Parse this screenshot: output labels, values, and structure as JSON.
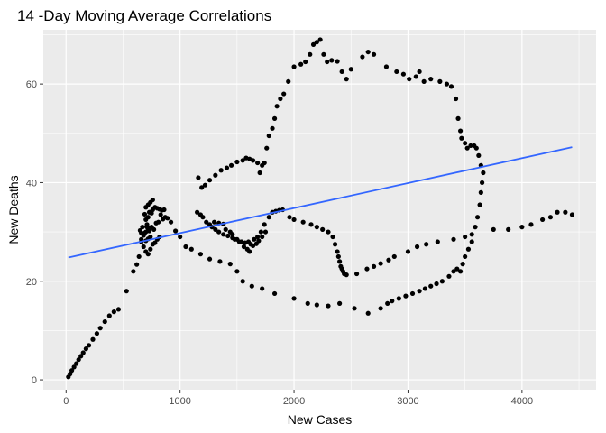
{
  "chart_data": {
    "type": "scatter",
    "title": "14 -Day Moving Average Correlations",
    "xlabel": "New  Cases",
    "ylabel": "New Deaths",
    "xlim": [
      -200,
      4650
    ],
    "ylim": [
      -2,
      71
    ],
    "x_ticks": [
      0,
      1000,
      2000,
      3000,
      4000
    ],
    "x_tick_labels": [
      "0",
      "1000",
      "2000",
      "3000",
      "4000"
    ],
    "y_ticks": [
      0,
      20,
      40,
      60
    ],
    "y_tick_labels": [
      "0",
      "20",
      "40",
      "60"
    ],
    "grid": true,
    "legend": "none",
    "colors": {
      "panel": "#ebebeb",
      "grid_major": "#ffffff",
      "points": "#000000",
      "fit_line": "#3366ff"
    },
    "fit_line": {
      "x": [
        20,
        4440
      ],
      "y": [
        24.8,
        47.2
      ]
    },
    "points": [
      [
        20,
        0.6
      ],
      [
        35,
        1.2
      ],
      [
        50,
        1.9
      ],
      [
        70,
        2.6
      ],
      [
        90,
        3.3
      ],
      [
        110,
        4.1
      ],
      [
        130,
        4.8
      ],
      [
        150,
        5.5
      ],
      [
        175,
        6.3
      ],
      [
        200,
        7.0
      ],
      [
        235,
        8.2
      ],
      [
        270,
        9.4
      ],
      [
        300,
        10.5
      ],
      [
        340,
        11.8
      ],
      [
        380,
        13.0
      ],
      [
        420,
        13.8
      ],
      [
        460,
        14.3
      ],
      [
        530,
        18.0
      ],
      [
        590,
        22.0
      ],
      [
        620,
        23.4
      ],
      [
        640,
        25.0
      ],
      [
        660,
        28.0
      ],
      [
        680,
        29.5
      ],
      [
        700,
        30.0
      ],
      [
        720,
        30.7
      ],
      [
        650,
        30.3
      ],
      [
        670,
        31.0
      ],
      [
        690,
        29.8
      ],
      [
        710,
        31.5
      ],
      [
        730,
        30.2
      ],
      [
        750,
        31.0
      ],
      [
        770,
        30.5
      ],
      [
        790,
        31.8
      ],
      [
        810,
        32.0
      ],
      [
        830,
        33.5
      ],
      [
        850,
        32.6
      ],
      [
        870,
        33.0
      ],
      [
        890,
        32.8
      ],
      [
        920,
        32.0
      ],
      [
        960,
        30.2
      ],
      [
        1000,
        29.0
      ],
      [
        700,
        32.5
      ],
      [
        720,
        33.0
      ],
      [
        740,
        34.0
      ],
      [
        760,
        34.5
      ],
      [
        780,
        35.0
      ],
      [
        800,
        34.8
      ],
      [
        820,
        34.6
      ],
      [
        840,
        34.4
      ],
      [
        860,
        34.5
      ],
      [
        700,
        35.0
      ],
      [
        720,
        35.5
      ],
      [
        740,
        36.0
      ],
      [
        760,
        36.5
      ],
      [
        730,
        34.0
      ],
      [
        750,
        33.8
      ],
      [
        690,
        33.6
      ],
      [
        710,
        31.0
      ],
      [
        740,
        29.0
      ],
      [
        660,
        28.5
      ],
      [
        680,
        27.0
      ],
      [
        700,
        26.0
      ],
      [
        720,
        25.5
      ],
      [
        740,
        26.5
      ],
      [
        760,
        27.5
      ],
      [
        780,
        27.8
      ],
      [
        800,
        28.5
      ],
      [
        820,
        29.0
      ],
      [
        680,
        29.3
      ],
      [
        660,
        29.8
      ],
      [
        700,
        28.2
      ],
      [
        720,
        28.6
      ],
      [
        1160,
        41.0
      ],
      [
        1190,
        39.0
      ],
      [
        1220,
        39.5
      ],
      [
        1260,
        40.5
      ],
      [
        1310,
        41.5
      ],
      [
        1360,
        42.5
      ],
      [
        1410,
        43.0
      ],
      [
        1450,
        43.5
      ],
      [
        1500,
        44.2
      ],
      [
        1550,
        44.5
      ],
      [
        1580,
        45.0
      ],
      [
        1610,
        44.8
      ],
      [
        1640,
        44.5
      ],
      [
        1680,
        44.0
      ],
      [
        1700,
        42.0
      ],
      [
        1720,
        43.5
      ],
      [
        1740,
        44.0
      ],
      [
        1760,
        47.0
      ],
      [
        1780,
        49.5
      ],
      [
        1810,
        51.0
      ],
      [
        1830,
        53.0
      ],
      [
        1850,
        55.5
      ],
      [
        1880,
        57.0
      ],
      [
        1910,
        58.0
      ],
      [
        1950,
        60.5
      ],
      [
        2000,
        63.5
      ],
      [
        2060,
        64.0
      ],
      [
        2100,
        64.5
      ],
      [
        2140,
        66.0
      ],
      [
        2170,
        68.0
      ],
      [
        2200,
        68.5
      ],
      [
        2230,
        69.0
      ],
      [
        2260,
        66.0
      ],
      [
        2290,
        64.5
      ],
      [
        2330,
        64.8
      ],
      [
        2380,
        64.6
      ],
      [
        2420,
        62.5
      ],
      [
        2460,
        61.0
      ],
      [
        2500,
        63.0
      ],
      [
        2600,
        65.5
      ],
      [
        2650,
        66.5
      ],
      [
        2700,
        66.0
      ],
      [
        2810,
        63.5
      ],
      [
        2900,
        62.5
      ],
      [
        2960,
        62.0
      ],
      [
        3010,
        61.0
      ],
      [
        3070,
        61.5
      ],
      [
        3100,
        62.5
      ],
      [
        3140,
        60.5
      ],
      [
        3200,
        61.0
      ],
      [
        3280,
        60.5
      ],
      [
        3340,
        60.0
      ],
      [
        3380,
        59.5
      ],
      [
        3420,
        57.0
      ],
      [
        3440,
        53.0
      ],
      [
        3460,
        50.5
      ],
      [
        3470,
        49.0
      ],
      [
        3500,
        48.0
      ],
      [
        3520,
        47.0
      ],
      [
        3550,
        47.5
      ],
      [
        3580,
        47.5
      ],
      [
        3600,
        47.0
      ],
      [
        3620,
        45.5
      ],
      [
        3640,
        43.5
      ],
      [
        3660,
        42.0
      ],
      [
        3650,
        40.0
      ],
      [
        3640,
        38.0
      ],
      [
        3630,
        35.5
      ],
      [
        3610,
        33.0
      ],
      [
        3590,
        31.0
      ],
      [
        3560,
        28.0
      ],
      [
        3530,
        26.5
      ],
      [
        3500,
        25.0
      ],
      [
        3480,
        23.5
      ],
      [
        3460,
        22.0
      ],
      [
        3430,
        22.5
      ],
      [
        3400,
        22.0
      ],
      [
        3360,
        21.0
      ],
      [
        3300,
        20.0
      ],
      [
        3250,
        19.5
      ],
      [
        3200,
        19.0
      ],
      [
        3150,
        18.5
      ],
      [
        3100,
        18.0
      ],
      [
        3040,
        17.5
      ],
      [
        2980,
        17.0
      ],
      [
        2920,
        16.5
      ],
      [
        2860,
        16.0
      ],
      [
        2820,
        15.5
      ],
      [
        2760,
        14.5
      ],
      [
        2650,
        13.5
      ],
      [
        2530,
        14.5
      ],
      [
        2400,
        15.5
      ],
      [
        2300,
        15.0
      ],
      [
        2200,
        15.2
      ],
      [
        2120,
        15.5
      ],
      [
        2000,
        16.5
      ],
      [
        1830,
        17.5
      ],
      [
        1720,
        18.5
      ],
      [
        1630,
        19.0
      ],
      [
        1550,
        20.0
      ],
      [
        1500,
        22.0
      ],
      [
        1440,
        23.5
      ],
      [
        1350,
        24.0
      ],
      [
        1260,
        24.5
      ],
      [
        1180,
        25.5
      ],
      [
        1100,
        26.5
      ],
      [
        1050,
        27.0
      ],
      [
        1150,
        34.0
      ],
      [
        1180,
        33.5
      ],
      [
        1200,
        33.0
      ],
      [
        1230,
        32.0
      ],
      [
        1260,
        31.5
      ],
      [
        1280,
        31.0
      ],
      [
        1310,
        30.5
      ],
      [
        1340,
        30.0
      ],
      [
        1380,
        29.5
      ],
      [
        1420,
        29.2
      ],
      [
        1460,
        28.8
      ],
      [
        1500,
        28.5
      ],
      [
        1540,
        28.0
      ],
      [
        1570,
        27.8
      ],
      [
        1600,
        28.0
      ],
      [
        1620,
        27.5
      ],
      [
        1650,
        28.5
      ],
      [
        1680,
        29.0
      ],
      [
        1710,
        30.0
      ],
      [
        1740,
        31.5
      ],
      [
        1780,
        33.0
      ],
      [
        1810,
        34.0
      ],
      [
        1840,
        34.2
      ],
      [
        1870,
        34.4
      ],
      [
        1900,
        34.5
      ],
      [
        1960,
        33.0
      ],
      [
        2000,
        32.5
      ],
      [
        2080,
        32.0
      ],
      [
        2150,
        31.5
      ],
      [
        2200,
        31.0
      ],
      [
        2250,
        30.5
      ],
      [
        2300,
        30.0
      ],
      [
        2340,
        29.0
      ],
      [
        2360,
        27.5
      ],
      [
        2380,
        26.0
      ],
      [
        2390,
        25.0
      ],
      [
        2400,
        24.0
      ],
      [
        2410,
        23.0
      ],
      [
        2420,
        22.5
      ],
      [
        2430,
        22.0
      ],
      [
        2440,
        21.5
      ],
      [
        2460,
        21.3
      ],
      [
        2550,
        21.5
      ],
      [
        2640,
        22.5
      ],
      [
        2700,
        23.0
      ],
      [
        2760,
        23.6
      ],
      [
        2830,
        24.3
      ],
      [
        2880,
        25.0
      ],
      [
        3000,
        26.0
      ],
      [
        3080,
        27.0
      ],
      [
        3160,
        27.5
      ],
      [
        3260,
        28.0
      ],
      [
        3400,
        28.5
      ],
      [
        3500,
        29.0
      ],
      [
        3560,
        29.5
      ],
      [
        3750,
        30.5
      ],
      [
        3880,
        30.5
      ],
      [
        4000,
        31.0
      ],
      [
        4080,
        31.5
      ],
      [
        4180,
        32.5
      ],
      [
        4250,
        33.0
      ],
      [
        4310,
        34.0
      ],
      [
        4380,
        34.0
      ],
      [
        4440,
        33.5
      ],
      [
        1300,
        32.0
      ],
      [
        1340,
        31.8
      ],
      [
        1380,
        31.6
      ],
      [
        1400,
        30.5
      ],
      [
        1440,
        30.0
      ],
      [
        1460,
        29.5
      ],
      [
        1480,
        28.5
      ],
      [
        1520,
        28.0
      ],
      [
        1560,
        27.0
      ],
      [
        1590,
        26.5
      ],
      [
        1610,
        26.0
      ],
      [
        1640,
        27.2
      ],
      [
        1670,
        27.6
      ],
      [
        1690,
        28.2
      ],
      [
        1720,
        29.0
      ],
      [
        1750,
        30.0
      ]
    ]
  }
}
